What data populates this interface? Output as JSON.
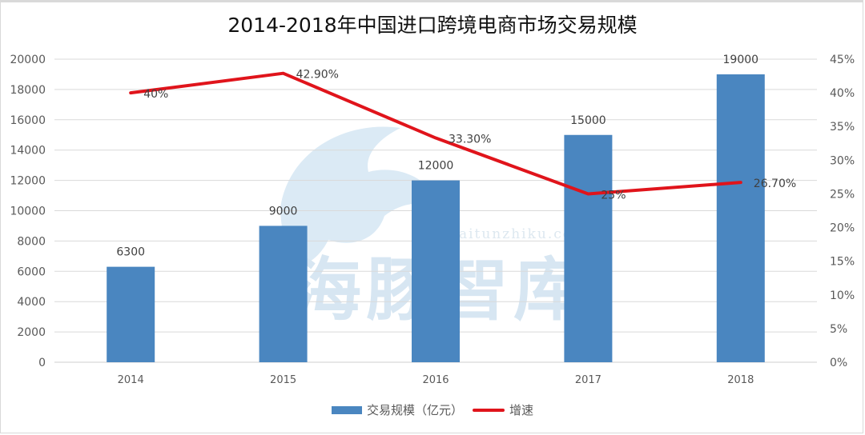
{
  "chart_data": {
    "type": "bar+line",
    "title": "2014-2018年中国进口跨境电商市场交易规模",
    "categories": [
      "2014",
      "2015",
      "2016",
      "2017",
      "2018"
    ],
    "series": [
      {
        "name": "交易规模（亿元）",
        "type": "bar",
        "axis": "left",
        "color": "#4a86c0",
        "values": [
          6300,
          9000,
          12000,
          15000,
          19000
        ],
        "labels": [
          "6300",
          "9000",
          "12000",
          "15000",
          "19000"
        ]
      },
      {
        "name": "增速",
        "type": "line",
        "axis": "right",
        "color": "#e0141b",
        "values": [
          40,
          42.9,
          33.3,
          25,
          26.7
        ],
        "labels": [
          "40%",
          "42.90%",
          "33.30%",
          "25%",
          "26.70%"
        ]
      }
    ],
    "left_axis": {
      "min": 0,
      "max": 20000,
      "step": 2000,
      "ticks": [
        "0",
        "2000",
        "4000",
        "6000",
        "8000",
        "10000",
        "12000",
        "14000",
        "16000",
        "18000",
        "20000"
      ]
    },
    "right_axis": {
      "min": 0,
      "max": 45,
      "step": 5,
      "ticks": [
        "0%",
        "5%",
        "10%",
        "15%",
        "20%",
        "25%",
        "30%",
        "35%",
        "40%",
        "45%"
      ]
    },
    "grid": true,
    "legend_position": "bottom",
    "xlabel": "",
    "ylabel": ""
  },
  "watermark": {
    "text": "海豚智库",
    "url_text": "haitunzhiku.com"
  },
  "legend": {
    "bar_label": "交易规模（亿元）",
    "line_label": "增速"
  }
}
